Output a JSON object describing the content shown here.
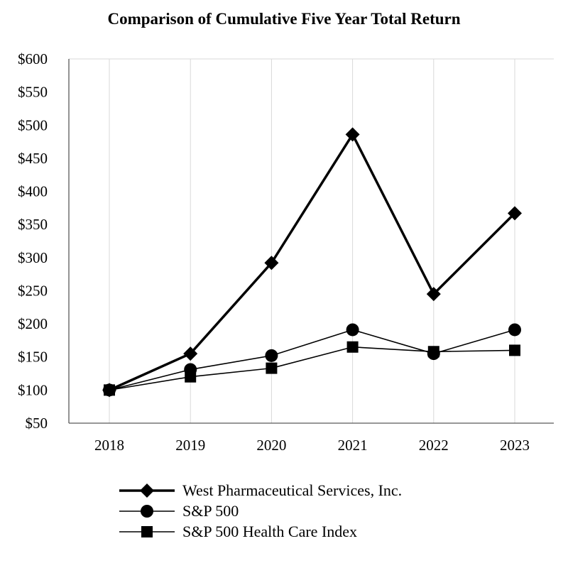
{
  "chart_data": {
    "type": "line",
    "title": "Comparison of Cumulative Five Year Total Return",
    "xlabel": "",
    "ylabel": "",
    "categories": [
      "2018",
      "2019",
      "2020",
      "2021",
      "2022",
      "2023"
    ],
    "ylim": [
      50,
      600
    ],
    "y_ticks": [
      50,
      100,
      150,
      200,
      250,
      300,
      350,
      400,
      450,
      500,
      550,
      600
    ],
    "y_tick_labels": [
      "$50",
      "$100",
      "$150",
      "$200",
      "$250",
      "$300",
      "$350",
      "$400",
      "$450",
      "$500",
      "$550",
      "$600"
    ],
    "grid": "vertical",
    "legend_position": "bottom",
    "series": [
      {
        "name": "West Pharmaceutical Services, Inc.",
        "marker": "diamond",
        "line": "thick",
        "values": [
          100,
          155,
          292,
          486,
          245,
          367
        ]
      },
      {
        "name": "S&P 500",
        "marker": "circle",
        "line": "thin",
        "values": [
          100,
          131,
          152,
          191,
          155,
          191
        ]
      },
      {
        "name": "S&P 500 Health Care Index",
        "marker": "square",
        "line": "thin",
        "values": [
          100,
          120,
          133,
          165,
          158,
          160
        ]
      }
    ],
    "colors": {
      "line": "#000000",
      "grid": "#d9d9d9",
      "axis": "#595959"
    }
  }
}
